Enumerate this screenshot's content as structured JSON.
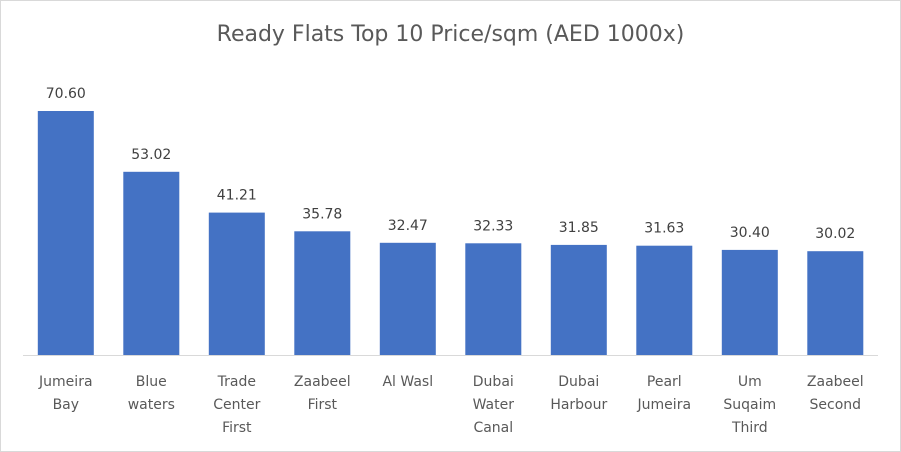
{
  "chart_data": {
    "type": "bar",
    "title": "Ready Flats Top 10 Price/sqm (AED 1000x)",
    "categories": [
      [
        "Jumeira",
        "Bay"
      ],
      [
        "Blue",
        "waters"
      ],
      [
        "Trade",
        "Center",
        "First"
      ],
      [
        "Zaabeel",
        "First"
      ],
      [
        "Al Wasl"
      ],
      [
        "Dubai",
        "Water",
        "Canal"
      ],
      [
        "Dubai",
        "Harbour"
      ],
      [
        "Pearl",
        "Jumeira"
      ],
      [
        "Um",
        "Suqaim",
        "Third"
      ],
      [
        "Zaabeel",
        "Second"
      ]
    ],
    "values": [
      70.6,
      53.02,
      41.21,
      35.78,
      32.47,
      32.33,
      31.85,
      31.63,
      30.4,
      30.02
    ],
    "value_labels": [
      "70.60",
      "53.02",
      "41.21",
      "35.78",
      "32.47",
      "32.33",
      "31.85",
      "31.63",
      "30.40",
      "30.02"
    ],
    "ylim": [
      0,
      70.6
    ],
    "bar_color": "#4472c4",
    "grid": false,
    "legend": "none",
    "data_labels": true
  }
}
